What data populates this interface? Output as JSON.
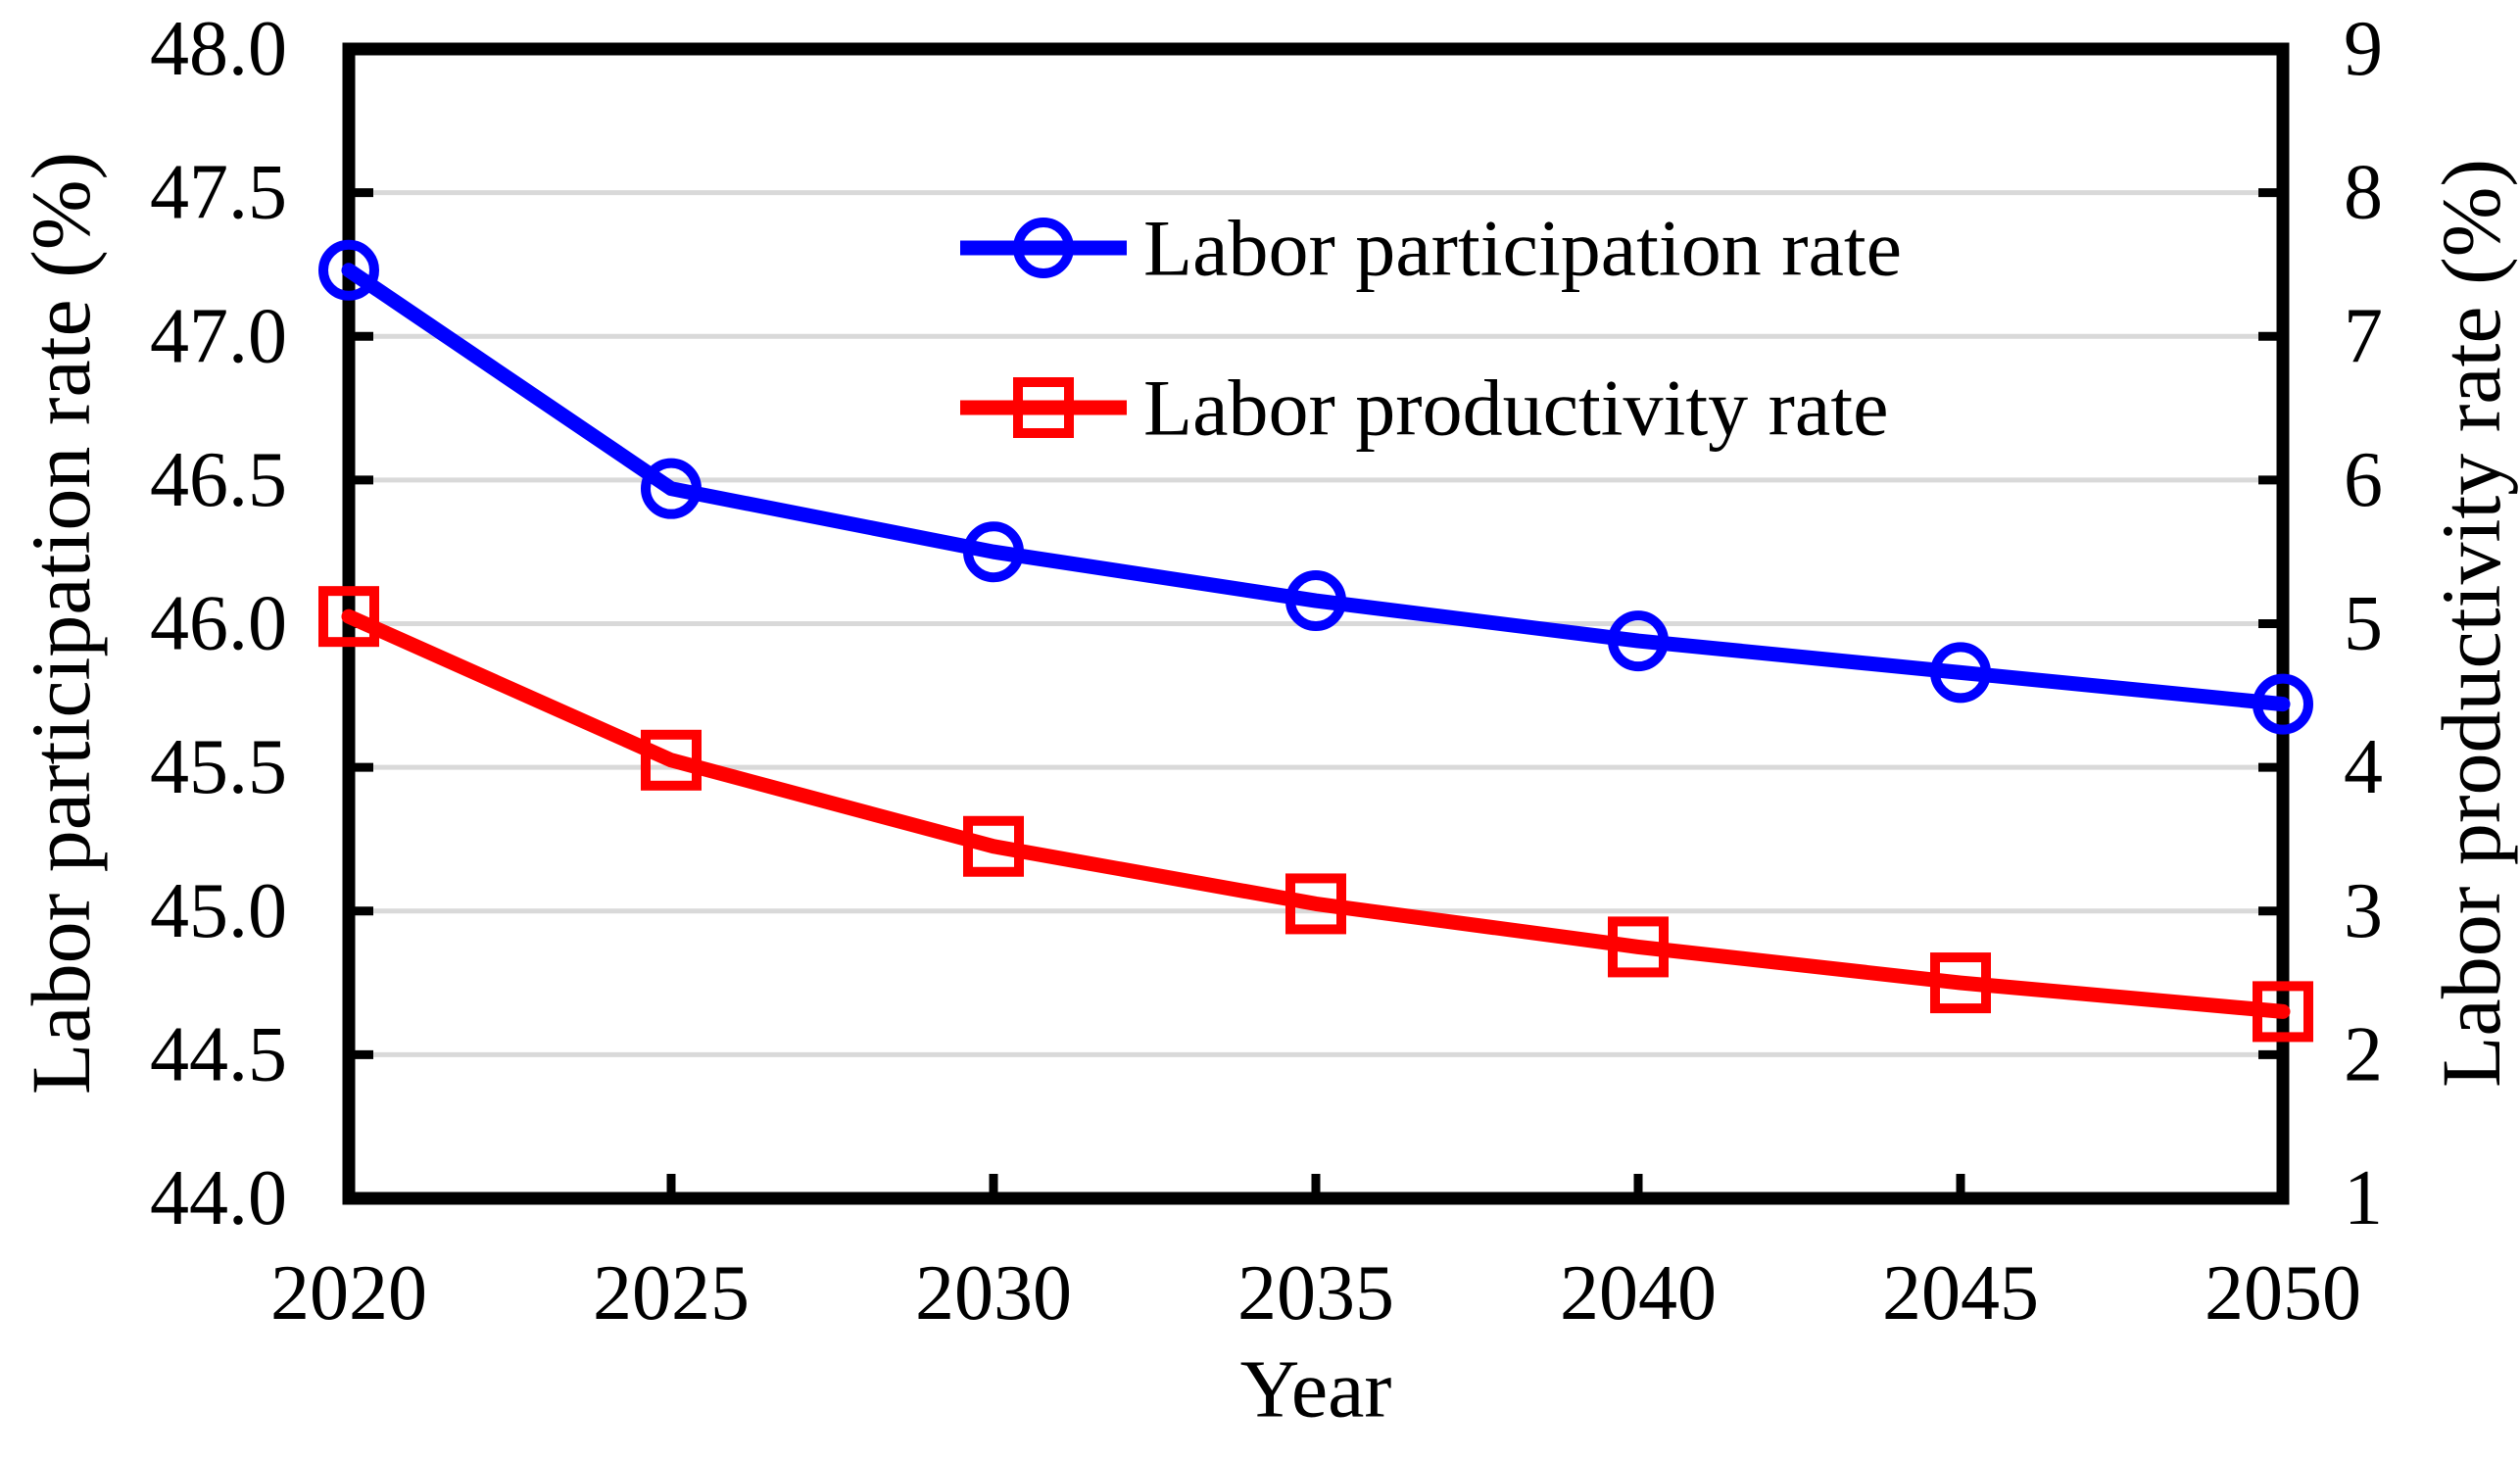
{
  "chart_data": {
    "type": "line",
    "title": "",
    "xlabel": "Year",
    "x": [
      2020,
      2025,
      2030,
      2035,
      2040,
      2045,
      2050
    ],
    "x_tick_labels": [
      "2020",
      "2025",
      "2030",
      "2035",
      "2040",
      "2045",
      "2050"
    ],
    "left_axis": {
      "label": "Labor participation rate (%)",
      "min": 44.0,
      "max": 48.0,
      "tick_step": 0.5,
      "tick_labels": [
        "44.0",
        "44.5",
        "45.0",
        "45.5",
        "46.0",
        "46.5",
        "47.0",
        "47.5",
        "48.0"
      ]
    },
    "right_axis": {
      "label": "Labor productivity rate (%)",
      "min": 1,
      "max": 9,
      "tick_step": 1,
      "tick_labels": [
        "1",
        "2",
        "3",
        "4",
        "5",
        "6",
        "7",
        "8",
        "9"
      ]
    },
    "series": [
      {
        "name": "Labor participation rate",
        "axis": "left",
        "color": "#0000ff",
        "marker": "circle",
        "values": [
          47.23,
          46.47,
          46.25,
          46.08,
          45.94,
          45.83,
          45.72
        ]
      },
      {
        "name": "Labor productivity rate",
        "axis": "right",
        "color": "#ff0000",
        "marker": "square",
        "values": [
          5.05,
          4.05,
          3.45,
          3.05,
          2.75,
          2.5,
          2.3
        ]
      }
    ],
    "grid": "horizontal",
    "gridline_color": "#d9d9d9",
    "frame_color": "#000000",
    "background_color": "#ffffff",
    "legend_position": "upper-center-inside"
  }
}
